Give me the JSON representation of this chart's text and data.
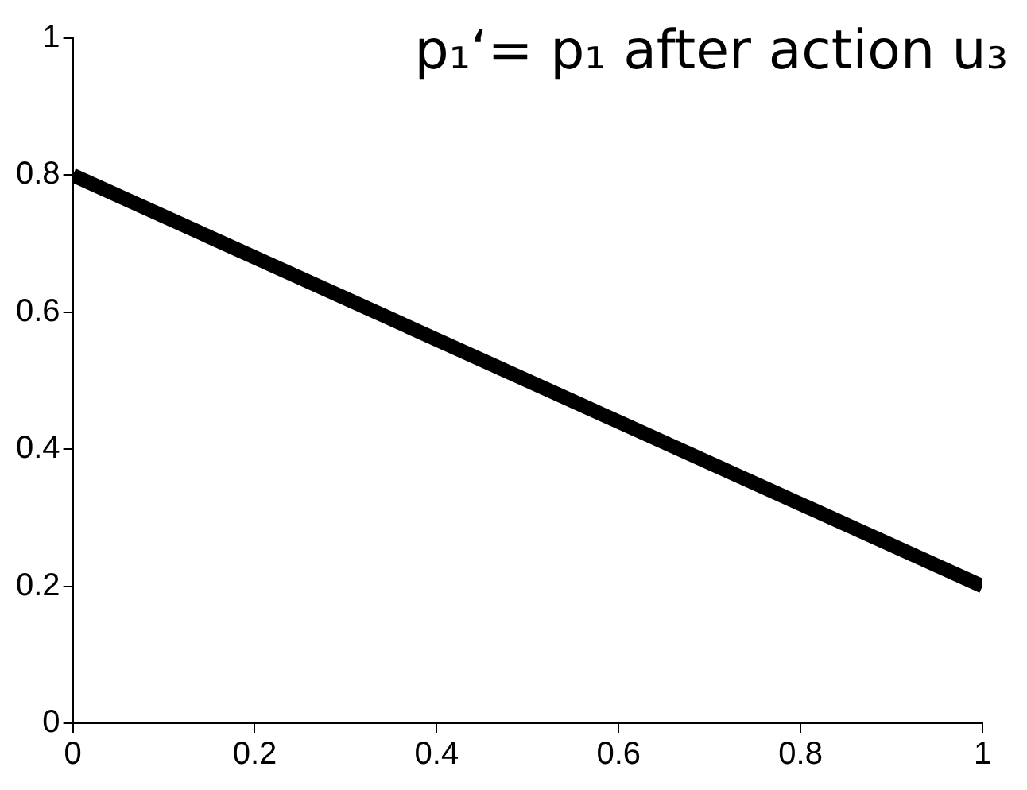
{
  "chart_data": {
    "type": "line",
    "title": "p₁‘= p₁ after action u₃",
    "x": [
      0,
      1
    ],
    "series": [
      {
        "color": "#000000",
        "values": [
          0.8,
          0.2
        ]
      }
    ],
    "xlim": [
      0,
      1
    ],
    "xticks": [
      0,
      0.2,
      0.4,
      0.6,
      0.8,
      1
    ],
    "ylim": [
      0,
      1
    ],
    "yticks": [
      0,
      0.2,
      0.4,
      0.6,
      0.8,
      1
    ],
    "grid": false,
    "legend": false,
    "marker": "none",
    "line_style": "solid"
  }
}
